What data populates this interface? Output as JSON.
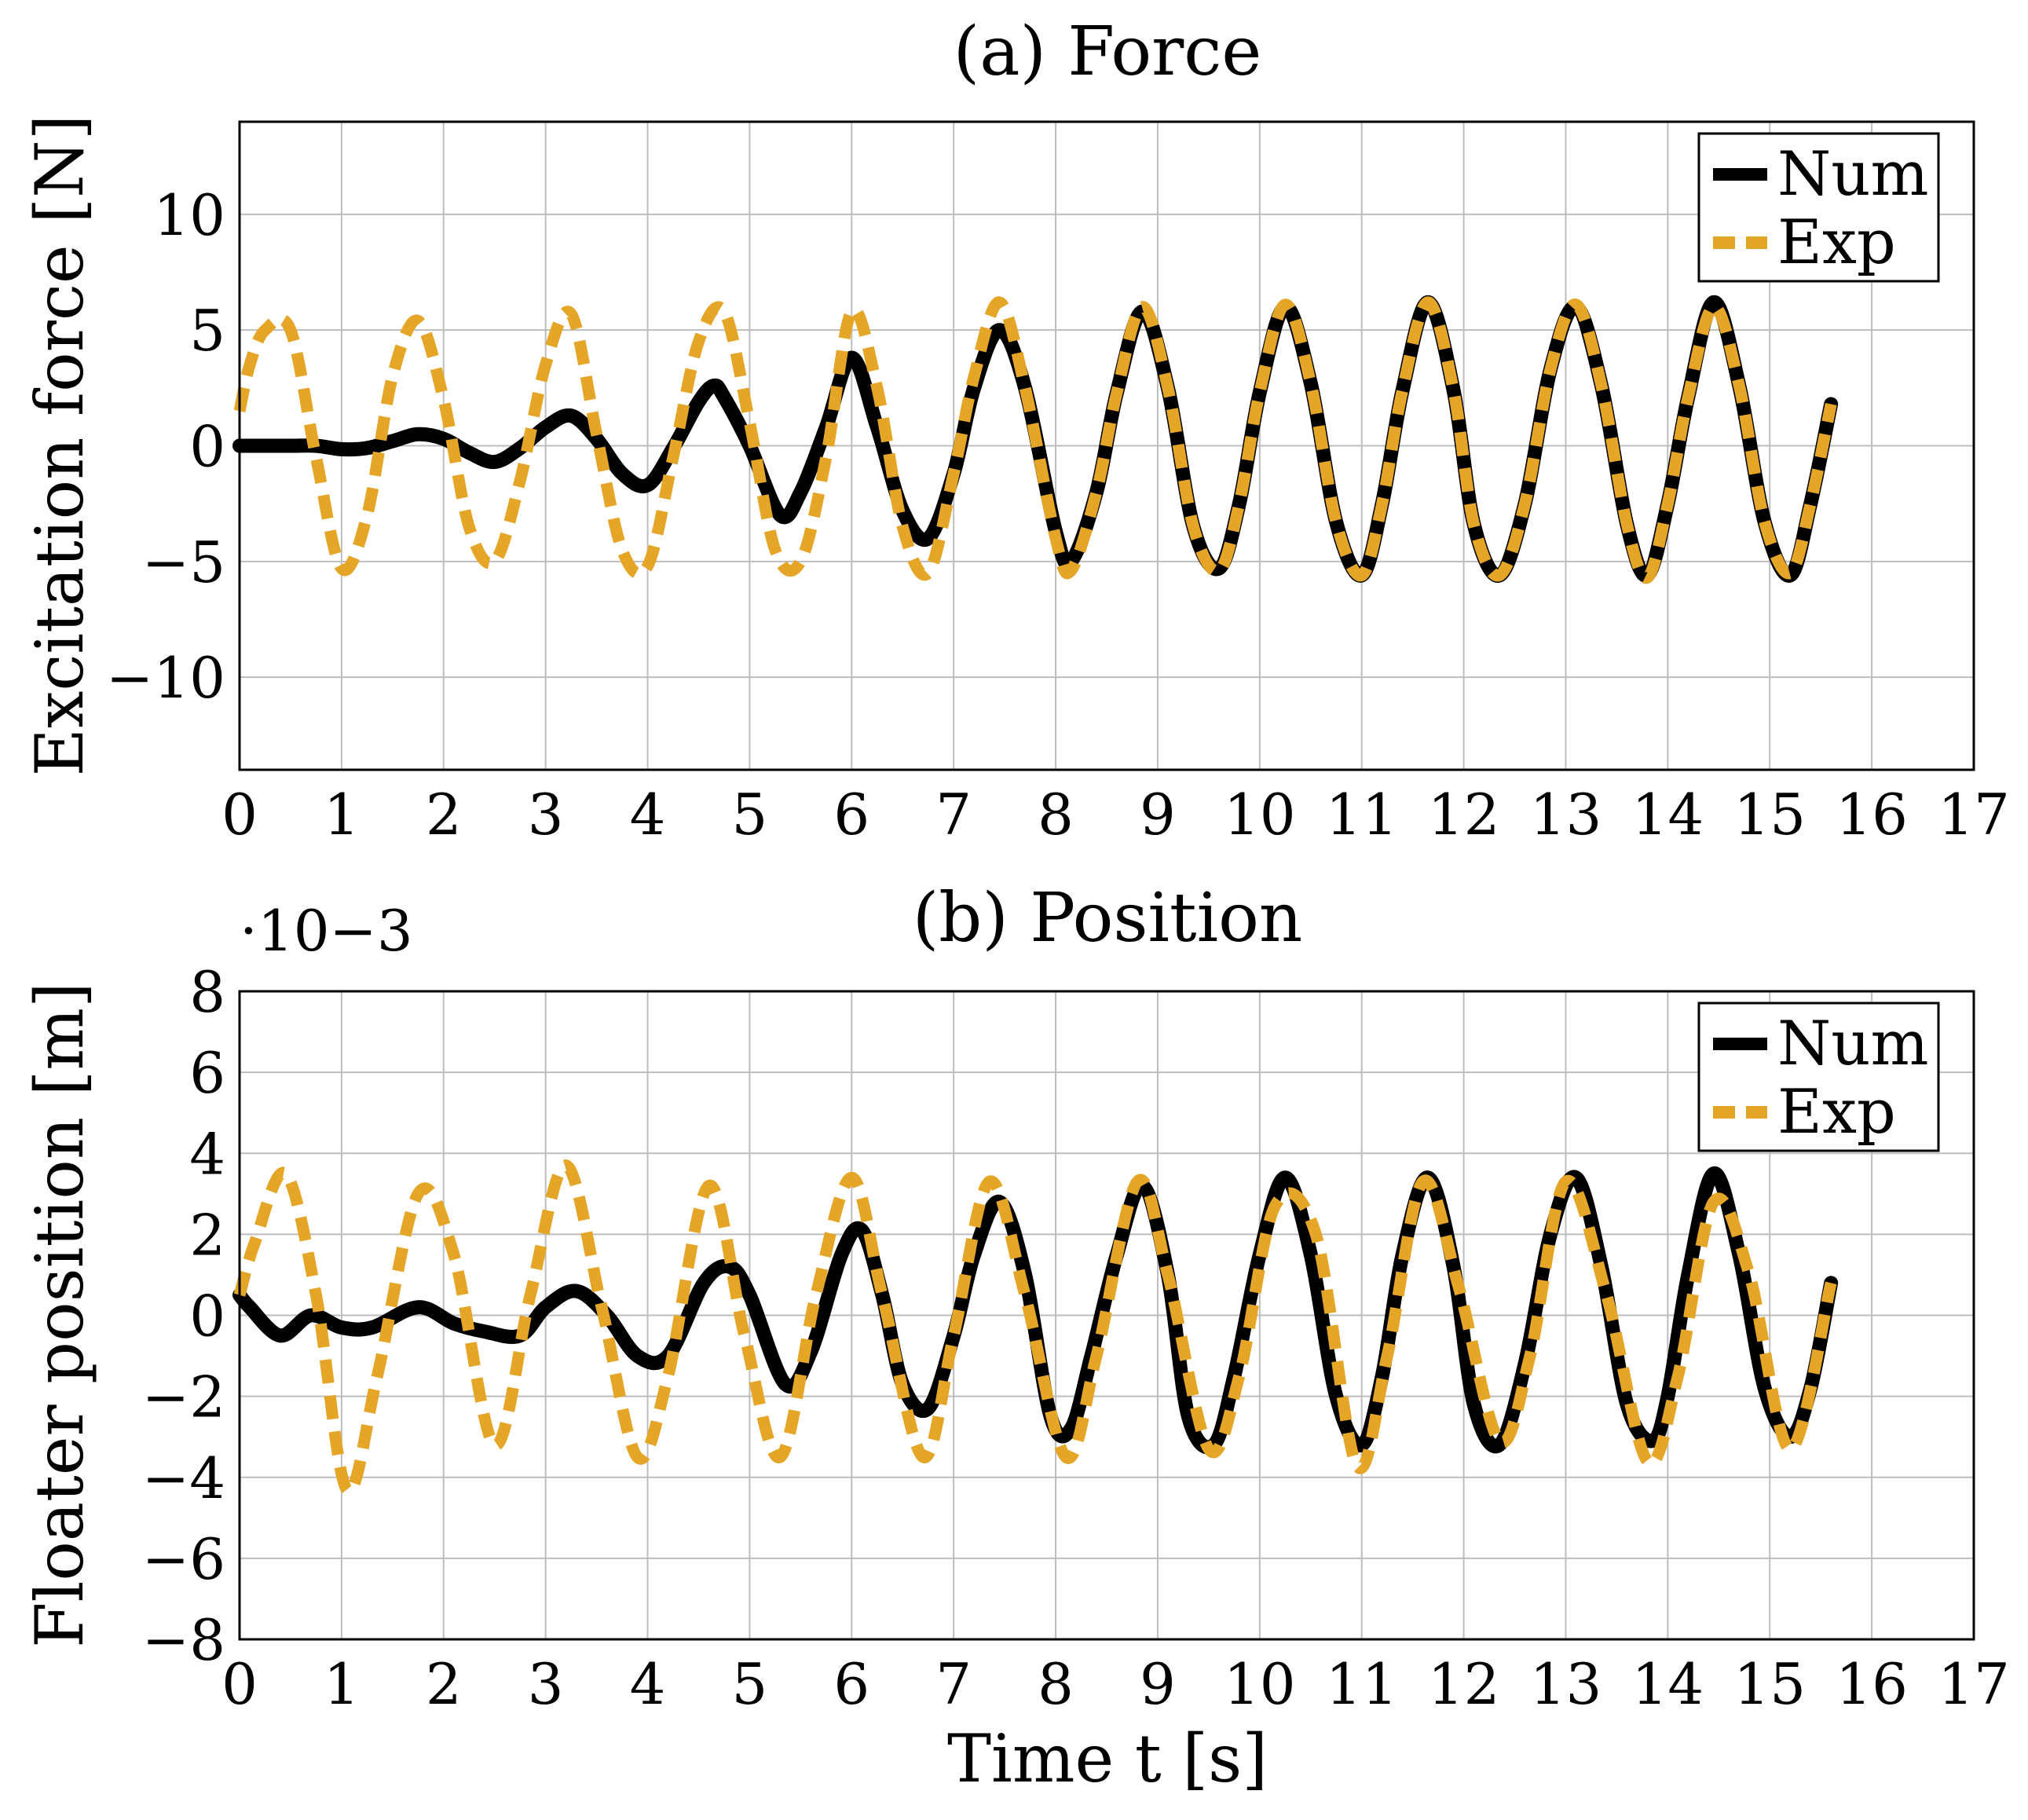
{
  "colors": {
    "num": "#000000",
    "exp": "#E5A526",
    "grid": "#bdbdbd"
  },
  "chart_data": [
    {
      "type": "line",
      "title": "(a) Force",
      "xlabel": "",
      "ylabel": "Excitation force [N]",
      "xlim": [
        0,
        17
      ],
      "ylim": [
        -14,
        14
      ],
      "xticks": [
        0,
        1,
        2,
        3,
        4,
        5,
        6,
        7,
        8,
        9,
        10,
        11,
        12,
        13,
        14,
        15,
        16,
        17
      ],
      "yticks": [
        -10,
        -5,
        0,
        5,
        10
      ],
      "ytick_labels": [
        "−10",
        "−5",
        "0",
        "5",
        "10"
      ],
      "legend": {
        "placement": "top-right",
        "entries": [
          "Num",
          "Exp"
        ]
      },
      "series": [
        {
          "name": "Num",
          "style": "solid",
          "x": [
            0,
            0.25,
            0.5,
            0.75,
            1,
            1.25,
            1.5,
            1.75,
            2,
            2.25,
            2.5,
            2.75,
            3,
            3.25,
            3.5,
            3.75,
            4,
            4.25,
            4.5,
            4.65,
            4.75,
            5,
            5.3,
            5.5,
            5.75,
            6,
            6.25,
            6.5,
            6.75,
            7,
            7.2,
            7.45,
            7.7,
            8,
            8.15,
            8.4,
            8.6,
            8.85,
            9.1,
            9.35,
            9.6,
            9.8,
            10,
            10.25,
            10.5,
            10.75,
            11.0,
            11.2,
            11.4,
            11.65,
            11.9,
            12.1,
            12.35,
            12.6,
            12.85,
            13.1,
            13.35,
            13.6,
            13.8,
            14.0,
            14.2,
            14.45,
            14.7,
            14.95,
            15.2,
            15.4,
            15.6
          ],
          "values": [
            0,
            0,
            0,
            0,
            -0.15,
            -0.1,
            0.2,
            0.5,
            0.3,
            -0.3,
            -0.7,
            -0.1,
            0.8,
            1.3,
            0.3,
            -1.2,
            -1.7,
            -0.1,
            1.9,
            2.6,
            2.1,
            0,
            -3,
            -2,
            0.8,
            3.8,
            0.8,
            -2.8,
            -4,
            -1.2,
            2.5,
            5,
            2.5,
            -3.7,
            -5,
            -2,
            2.3,
            5.8,
            2.5,
            -3.5,
            -5.3,
            -2.5,
            2.3,
            6,
            2.7,
            -3.3,
            -5.6,
            -2.5,
            2.4,
            6.2,
            2.4,
            -3.4,
            -5.6,
            -2.5,
            3.3,
            6.0,
            2.6,
            -3.4,
            -5.6,
            -2.5,
            2.1,
            6.2,
            2.6,
            -3.3,
            -5.6,
            -2.5,
            1.8
          ]
        },
        {
          "name": "Exp",
          "style": "dashed",
          "x": [
            0,
            0.1,
            0.25,
            0.5,
            0.75,
            1.0,
            1.25,
            1.5,
            1.75,
            2.0,
            2.25,
            2.5,
            2.75,
            3.0,
            3.25,
            3.5,
            3.75,
            4.0,
            4.25,
            4.5,
            4.75,
            5.0,
            5.25,
            5.5,
            5.75,
            6.0,
            6.25,
            6.5,
            6.75,
            7.0,
            7.2,
            7.45,
            7.7,
            8.0,
            8.15,
            8.4,
            8.6,
            8.85,
            9.1,
            9.35,
            9.6,
            9.8,
            10,
            10.25,
            10.5,
            10.75,
            11.0,
            11.2,
            11.4,
            11.65,
            11.9,
            12.1,
            12.35,
            12.6,
            12.85,
            13.1,
            13.35,
            13.6,
            13.8,
            14.0,
            14.2,
            14.45,
            14.7,
            14.95,
            15.2,
            15.4,
            15.6
          ],
          "values": [
            1.5,
            3.5,
            5,
            5,
            -0.5,
            -5.3,
            -3,
            3,
            5.4,
            2,
            -3.5,
            -5,
            -1.5,
            3.5,
            5.7,
            0.5,
            -4.5,
            -5.2,
            -0.5,
            4.5,
            5.8,
            1,
            -4.5,
            -5,
            -0.5,
            5.8,
            2.5,
            -3.5,
            -5.5,
            -1.2,
            3.0,
            6.2,
            2.5,
            -4,
            -5.4,
            -2,
            2.3,
            6.0,
            2.5,
            -3.5,
            -5.4,
            -2.5,
            2.3,
            6.1,
            2.7,
            -3.3,
            -5.6,
            -2.5,
            2.4,
            6.2,
            2.4,
            -3.4,
            -5.6,
            -2.5,
            3.3,
            6.1,
            2.6,
            -3.4,
            -5.7,
            -2.5,
            2.1,
            6.0,
            2.6,
            -3.3,
            -5.5,
            -2.5,
            1.8
          ]
        }
      ]
    },
    {
      "type": "line",
      "title": "(b) Position",
      "xlabel": "Time t [s]",
      "ylabel": "Floater position [m]",
      "scale_note": "·10−3",
      "xlim": [
        0,
        17
      ],
      "ylim": [
        -8,
        8
      ],
      "xticks": [
        0,
        1,
        2,
        3,
        4,
        5,
        6,
        7,
        8,
        9,
        10,
        11,
        12,
        13,
        14,
        15,
        16,
        17
      ],
      "yticks": [
        -8,
        -6,
        -4,
        -2,
        0,
        2,
        4,
        6,
        8
      ],
      "ytick_labels": [
        "−8",
        "−6",
        "−4",
        "−2",
        "0",
        "2",
        "4",
        "6",
        "8"
      ],
      "legend": {
        "placement": "top-right",
        "entries": [
          "Num",
          "Exp"
        ]
      },
      "series": [
        {
          "name": "Num",
          "style": "solid",
          "x": [
            0,
            0.1,
            0.4,
            0.7,
            1.0,
            1.3,
            1.75,
            2.1,
            2.4,
            2.75,
            3.0,
            3.3,
            3.6,
            3.9,
            4.2,
            4.55,
            4.8,
            5.0,
            5.35,
            5.6,
            5.9,
            6.1,
            6.3,
            6.5,
            6.75,
            7.0,
            7.2,
            7.45,
            7.7,
            7.95,
            8.15,
            8.35,
            8.6,
            8.85,
            9.1,
            9.3,
            9.55,
            9.75,
            10.0,
            10.25,
            10.5,
            10.75,
            11.0,
            11.2,
            11.4,
            11.65,
            11.9,
            12.1,
            12.35,
            12.6,
            12.85,
            13.1,
            13.35,
            13.6,
            13.85,
            14.0,
            14.2,
            14.45,
            14.7,
            14.95,
            15.2,
            15.4,
            15.6
          ],
          "values": [
            0.5,
            0.2,
            -0.5,
            0,
            -0.3,
            -0.3,
            0.2,
            -0.2,
            -0.4,
            -0.5,
            0.2,
            0.6,
            0,
            -1,
            -1,
            0.8,
            1.2,
            0.5,
            -1.7,
            -0.9,
            1.5,
            2.1,
            0.5,
            -1.7,
            -2.3,
            -0.5,
            1.5,
            2.8,
            1,
            -2.5,
            -2.8,
            -1,
            1.5,
            3.2,
            1,
            -2.5,
            -3.2,
            -1.5,
            1.5,
            3.4,
            1.5,
            -2,
            -3.2,
            -1.5,
            1.5,
            3.4,
            1.2,
            -2.2,
            -3.2,
            -1.2,
            2,
            3.4,
            1.2,
            -2.2,
            -3.1,
            -2,
            1,
            3.5,
            1.5,
            -1.8,
            -3.0,
            -1.8,
            0.8
          ]
        },
        {
          "name": "Exp",
          "style": "dashed",
          "x": [
            0,
            0.15,
            0.45,
            0.75,
            1.05,
            1.35,
            1.75,
            2.1,
            2.5,
            2.85,
            3.2,
            3.55,
            3.9,
            4.2,
            4.6,
            4.95,
            5.3,
            5.65,
            6.0,
            6.3,
            6.7,
            7.0,
            7.35,
            7.7,
            8.1,
            8.4,
            8.8,
            9.1,
            9.5,
            9.8,
            10.15,
            10.55,
            10.95,
            11.25,
            11.6,
            11.95,
            12.35,
            12.65,
            13.0,
            13.4,
            13.8,
            14.1,
            14.45,
            14.8,
            15.2,
            15.6
          ],
          "values": [
            0.5,
            1.8,
            3.5,
            0.5,
            -4.3,
            -1.5,
            3,
            1.5,
            -3.2,
            0.5,
            3.7,
            0.2,
            -3.5,
            -1.5,
            3.2,
            -0.5,
            -3.5,
            0.5,
            3.4,
            0.5,
            -3.5,
            -0.5,
            3.3,
            0.5,
            -3.5,
            -1,
            3.3,
            1,
            -3.3,
            -1.5,
            2.7,
            2,
            -3.7,
            -1,
            3.3,
            0.7,
            -3.1,
            -1,
            3.3,
            0.5,
            -3.6,
            -1.5,
            2.8,
            1,
            -3.3,
            0.8
          ]
        }
      ]
    }
  ]
}
